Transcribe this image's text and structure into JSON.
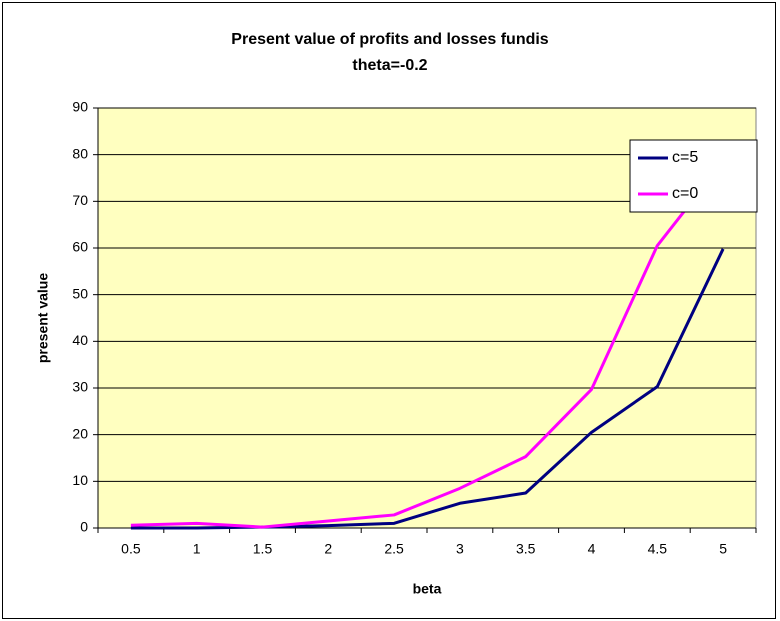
{
  "chart_data": {
    "type": "line",
    "title": "Present value of profits and losses fundis",
    "subtitle": "theta=-0.2",
    "x_label": "beta",
    "y_label": "present value",
    "categories": [
      "0.5",
      "1",
      "1.5",
      "2",
      "2.5",
      "3",
      "3.5",
      "4",
      "4.5",
      "5"
    ],
    "series": [
      {
        "name": "c=5",
        "color": "#000080",
        "values": [
          0,
          0,
          0.2,
          0.5,
          1,
          5.3,
          7.5,
          20.5,
          30.3,
          59.8
        ]
      },
      {
        "name": "c=0",
        "color": "#ff00ff",
        "values": [
          0.6,
          1,
          0.2,
          1.5,
          2.8,
          8.5,
          15.3,
          29.7,
          60.5,
          78.5
        ]
      }
    ],
    "ylim": [
      0,
      90
    ],
    "yticks": [
      0,
      10,
      20,
      30,
      40,
      50,
      60,
      70,
      80,
      90
    ],
    "grid": true,
    "legend": "top-right",
    "plot_background": "#ffffc0"
  }
}
